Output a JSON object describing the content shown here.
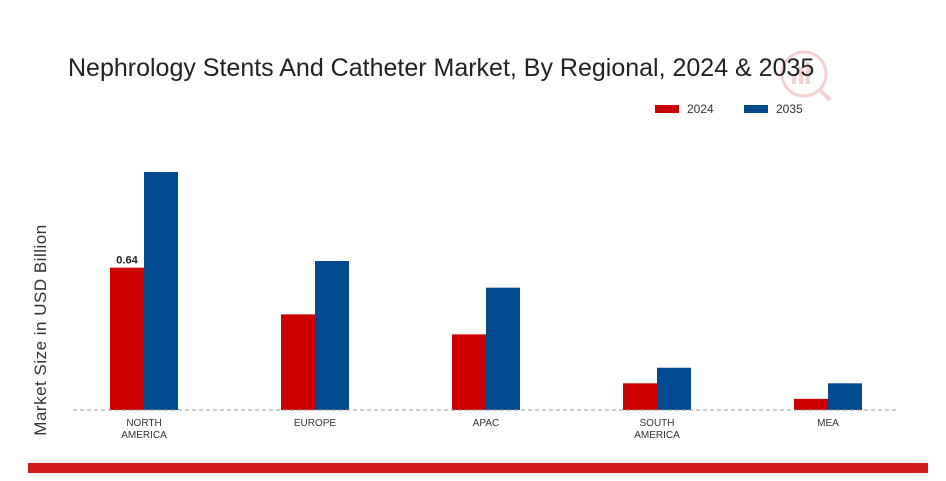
{
  "chart_data": {
    "type": "bar",
    "title": "Nephrology Stents And Catheter Market, By Regional, 2024 & 2035",
    "xlabel": "",
    "ylabel": "Market Size in USD Billion",
    "categories": [
      "NORTH AMERICA",
      "EUROPE",
      "APAC",
      "SOUTH AMERICA",
      "MEA"
    ],
    "category_lines": [
      [
        "NORTH",
        "AMERICA"
      ],
      [
        "EUROPE"
      ],
      [
        "APAC"
      ],
      [
        "SOUTH",
        "AMERICA"
      ],
      [
        "MEA"
      ]
    ],
    "series": [
      {
        "name": "2024",
        "color": "#cc0000",
        "values": [
          0.64,
          0.43,
          0.34,
          0.12,
          0.05
        ]
      },
      {
        "name": "2035",
        "color": "#004a8f",
        "values": [
          1.07,
          0.67,
          0.55,
          0.19,
          0.12
        ]
      }
    ],
    "data_labels": [
      {
        "series": 0,
        "index": 0,
        "text": "0.64"
      }
    ],
    "ylim": [
      0,
      1.25
    ],
    "grid": false,
    "legend_position": "top-right"
  },
  "decor": {
    "bottom_bar_color": "#d11a1a",
    "baseline_color": "#999999",
    "watermark": "logo"
  }
}
